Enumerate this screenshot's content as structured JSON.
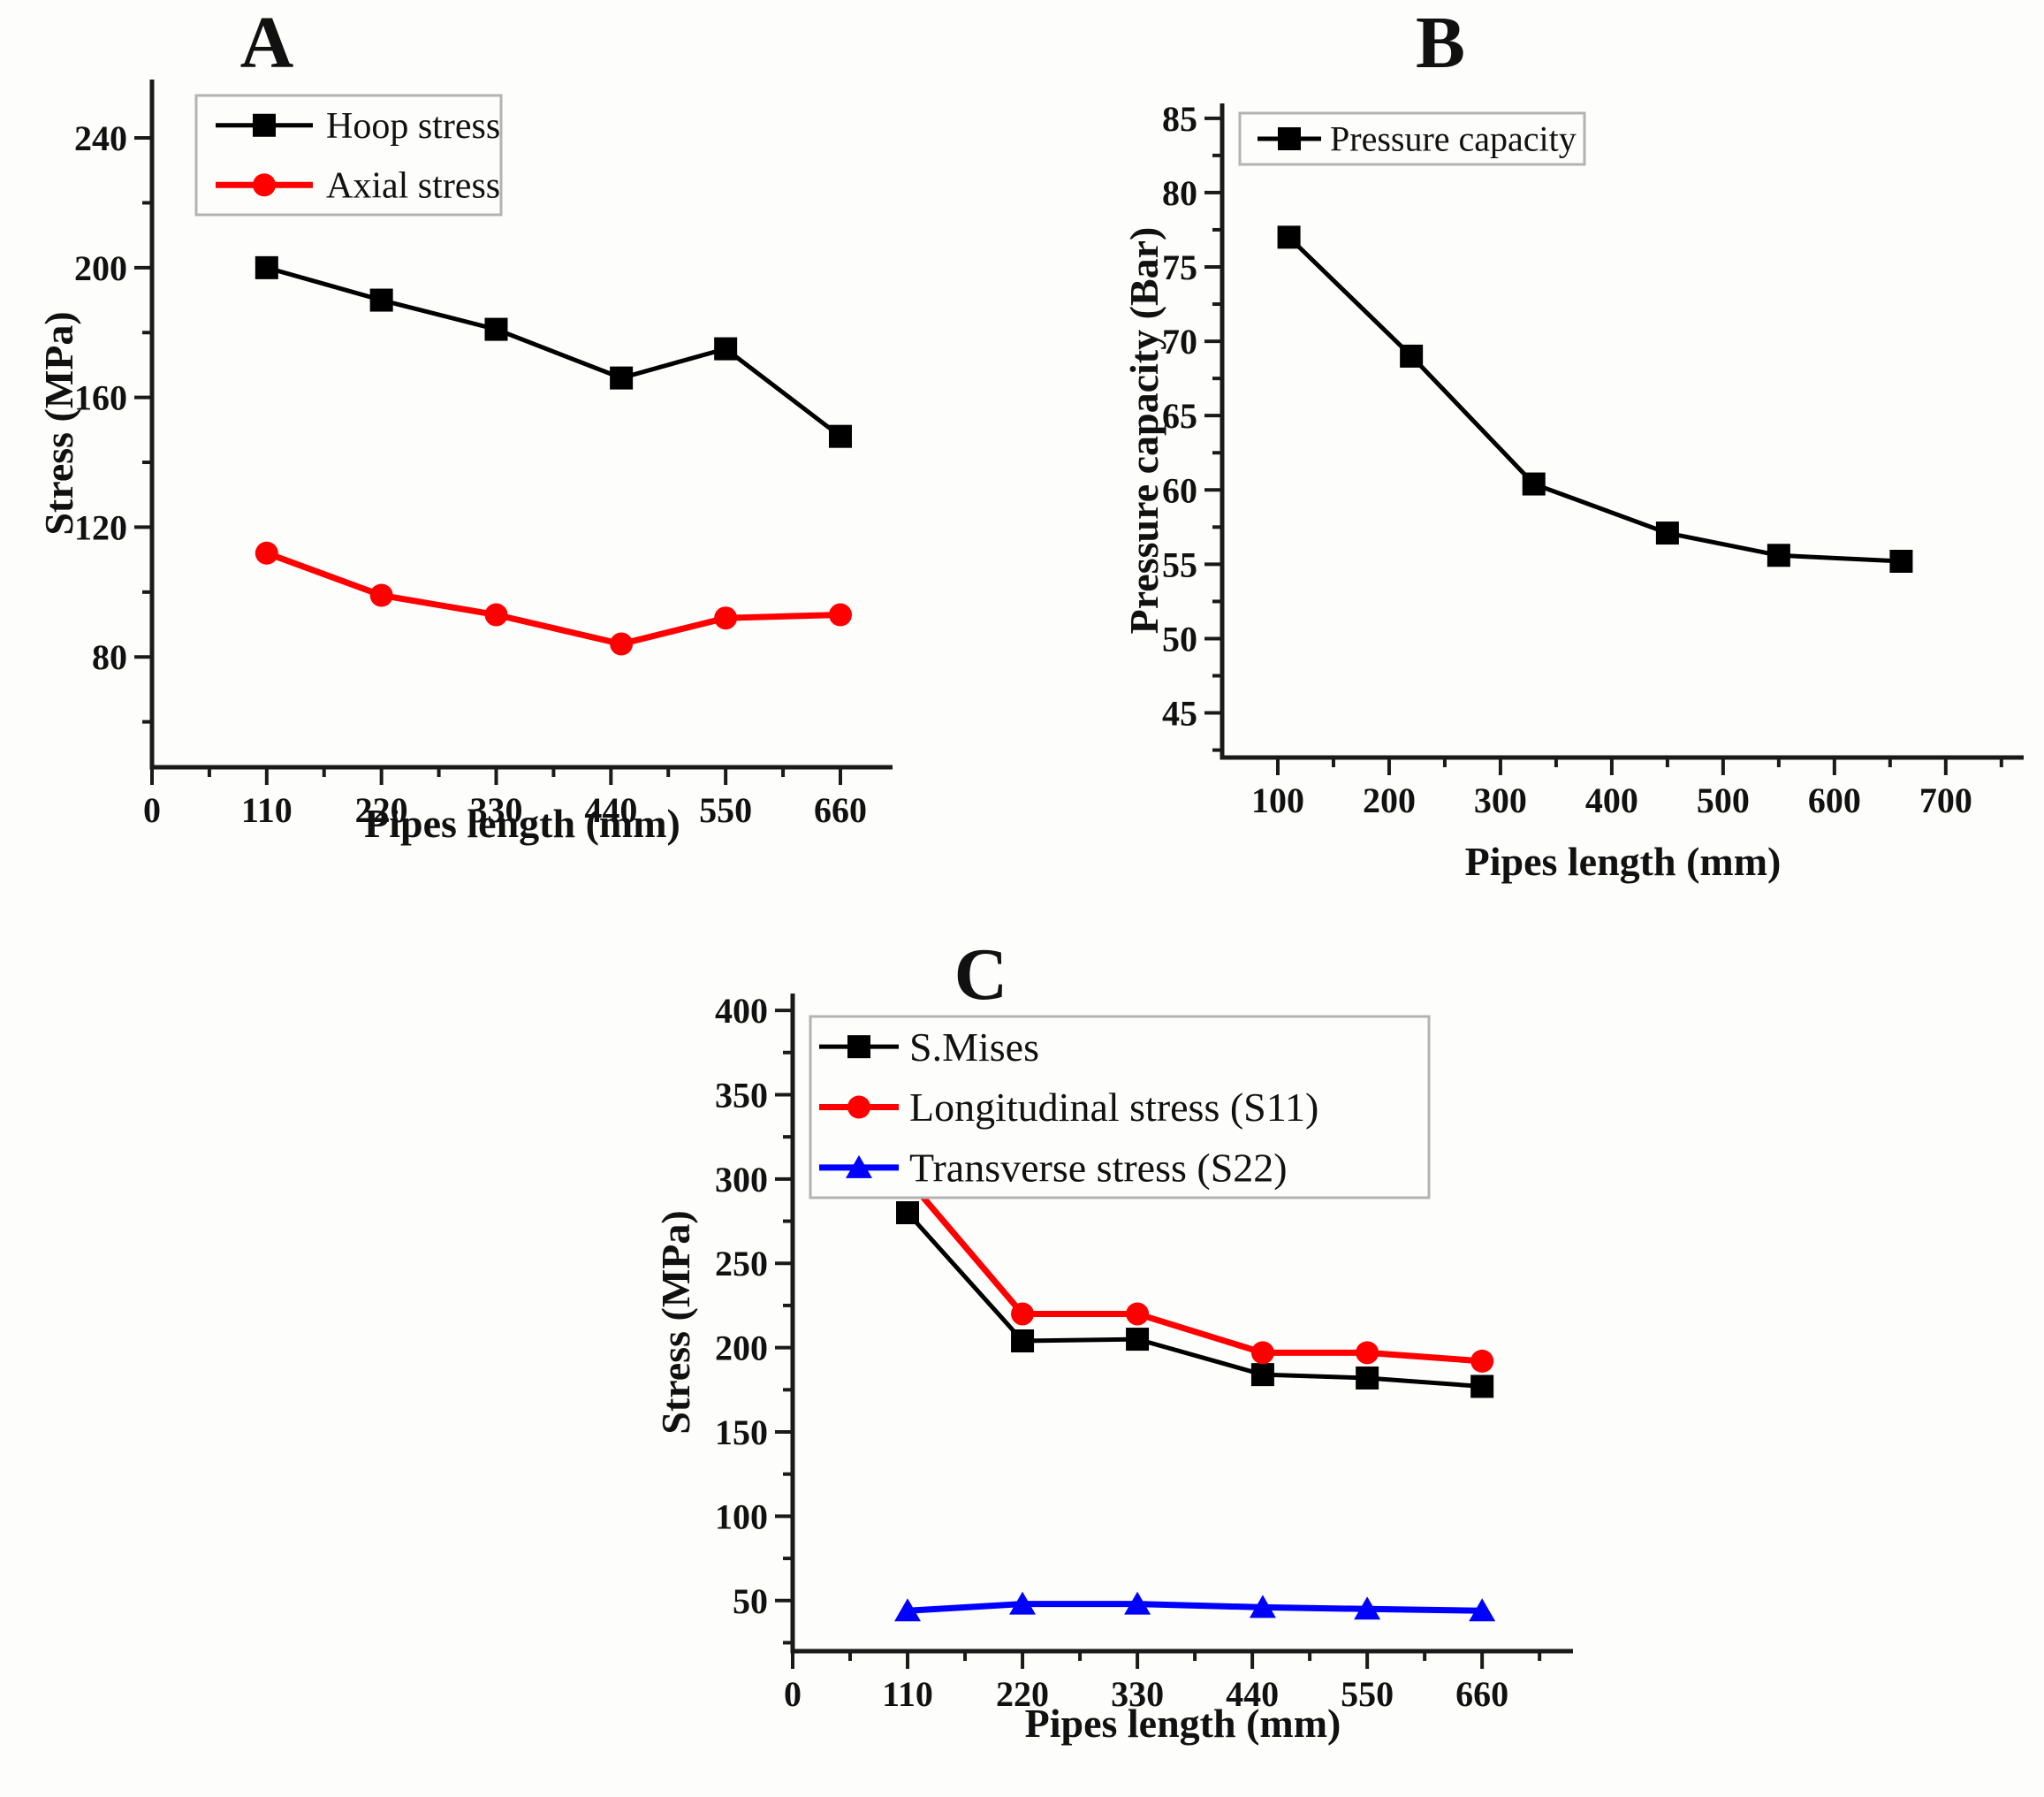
{
  "figure": {
    "background": "#fdfdfc",
    "panel_labels": [
      "A",
      "B",
      "C"
    ]
  },
  "styles": {
    "axis_color": "#1a1a1a",
    "text_color": "#111111",
    "legend_border": "#b3b3b3",
    "legend_fill": "#fdfdfc",
    "series_black": "#000000",
    "series_red": "#ff0000",
    "series_blue": "#0000ff"
  },
  "chart_data": [
    {
      "panel_label": "A",
      "type": "line",
      "x": [
        110,
        220,
        330,
        450,
        550,
        660
      ],
      "series": [
        {
          "name": "Hoop stress",
          "color": "#000000",
          "marker": "square",
          "line_width": 5,
          "values": [
            200,
            190,
            181,
            166,
            175,
            148
          ]
        },
        {
          "name": "Axial stress",
          "color": "#ff0000",
          "marker": "circle",
          "line_width": 7,
          "values": [
            112,
            99,
            93,
            84,
            92,
            93
          ]
        }
      ],
      "xlabel": "Pipes length (mm)",
      "ylabel": "Stress (MPa)",
      "xlim": [
        0,
        710
      ],
      "ylim": [
        46,
        258
      ],
      "xticks": [
        0,
        110,
        220,
        330,
        440,
        550,
        660
      ],
      "yticks": [
        80,
        120,
        160,
        200,
        240
      ],
      "x_minor_step": 55,
      "y_minor_step": 20,
      "legend_position": "top-left",
      "grid": false
    },
    {
      "panel_label": "B",
      "type": "line",
      "x": [
        110,
        220,
        330,
        450,
        550,
        660
      ],
      "series": [
        {
          "name": "Pressure capacity",
          "color": "#000000",
          "marker": "square",
          "line_width": 5,
          "values": [
            77,
            69,
            60.4,
            57.1,
            55.6,
            55.2
          ]
        }
      ],
      "xlabel": "Pipes length (mm)",
      "ylabel": "Pressure capacity (Bar)",
      "xlim": [
        50,
        770
      ],
      "ylim": [
        42,
        86
      ],
      "xticks": [
        100,
        200,
        300,
        400,
        500,
        600,
        700
      ],
      "yticks": [
        45,
        50,
        55,
        60,
        65,
        70,
        75,
        80,
        85
      ],
      "x_minor_step": 50,
      "y_minor_step": 2.5,
      "legend_position": "top-left",
      "grid": false
    },
    {
      "panel_label": "C",
      "type": "line",
      "x": [
        110,
        220,
        330,
        450,
        550,
        660
      ],
      "series": [
        {
          "name": "S.Mises",
          "color": "#000000",
          "marker": "square",
          "line_width": 5,
          "values": [
            280,
            204,
            205,
            184,
            182,
            177
          ]
        },
        {
          "name": "Longitudinal stress (S11)",
          "color": "#ff0000",
          "marker": "circle",
          "line_width": 7,
          "values": [
            300,
            220,
            220,
            197,
            197,
            192
          ]
        },
        {
          "name": "Transverse stress (S22)",
          "color": "#0000ff",
          "marker": "triangle",
          "line_width": 7,
          "values": [
            44,
            48,
            48,
            46,
            45,
            44
          ]
        }
      ],
      "xlabel": "Pipes length (mm)",
      "ylabel": "Stress (MPa)",
      "xlim": [
        0,
        747
      ],
      "ylim": [
        20,
        410
      ],
      "xticks": [
        0,
        110,
        220,
        330,
        440,
        550,
        660
      ],
      "yticks": [
        50,
        100,
        150,
        200,
        250,
        300,
        350,
        400
      ],
      "x_minor_step": 55,
      "y_minor_step": 25,
      "legend_position": "top-left",
      "grid": false
    }
  ]
}
